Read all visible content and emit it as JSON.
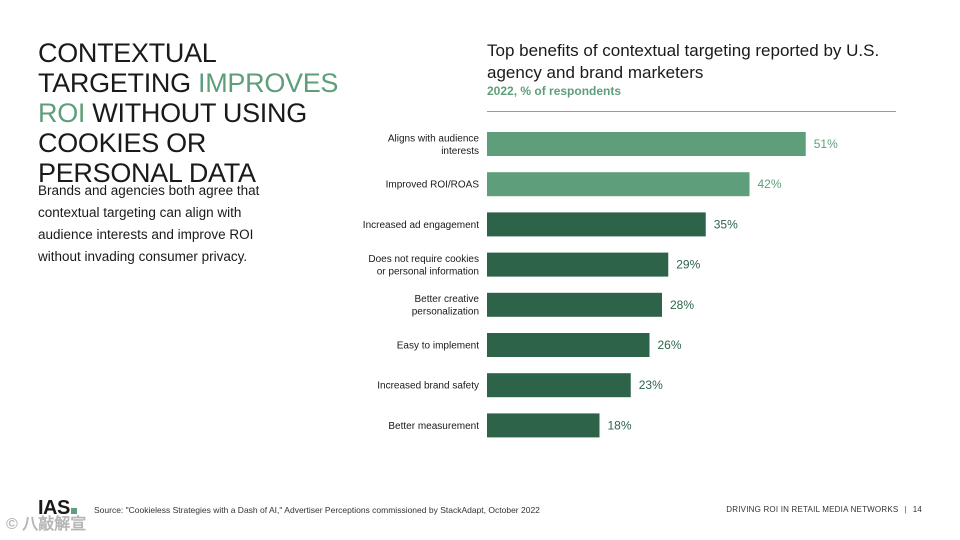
{
  "headline": {
    "part1": "CONTEXTUAL TARGETING ",
    "highlight1": "IMPROVES ROI",
    "part2": " WITHOUT USING COOKIES OR PERSONAL DATA"
  },
  "subtext": "Brands and agencies both agree that contextual targeting can align with audience interests and improve ROI without invading consumer privacy.",
  "colors": {
    "accent": "#5e9e7b",
    "bar_dark": "#2d6349",
    "bar_light": "#5e9e7b"
  },
  "chart_data": {
    "type": "bar",
    "orientation": "horizontal",
    "title": "Top benefits of contextual targeting reported by U.S. agency and brand marketers",
    "subtitle": "2022, % of respondents",
    "categories": [
      [
        "Aligns with audience",
        "interests"
      ],
      [
        "Improved ROI/ROAS"
      ],
      [
        "Increased ad engagement"
      ],
      [
        "Does not require cookies",
        "or personal information"
      ],
      [
        "Better creative",
        "personalization"
      ],
      [
        "Easy to implement"
      ],
      [
        "Increased brand safety"
      ],
      [
        "Better measurement"
      ]
    ],
    "values": [
      51,
      42,
      35,
      29,
      28,
      26,
      23,
      18
    ],
    "labels": [
      "51%",
      "42%",
      "35%",
      "29%",
      "28%",
      "26%",
      "23%",
      "18%"
    ],
    "highlighted": [
      true,
      true,
      false,
      false,
      false,
      false,
      false,
      false
    ],
    "xlim": [
      0,
      60
    ],
    "grid": false
  },
  "footer": {
    "logo": "IAS",
    "source": "Source: \"Cookieless Strategies with a Dash of AI,\" Advertiser Perceptions commissioned by StackAdapt, October 2022",
    "section": "DRIVING ROI IN RETAIL MEDIA NETWORKS",
    "page": "14"
  },
  "watermark": "© 八敲解宣"
}
